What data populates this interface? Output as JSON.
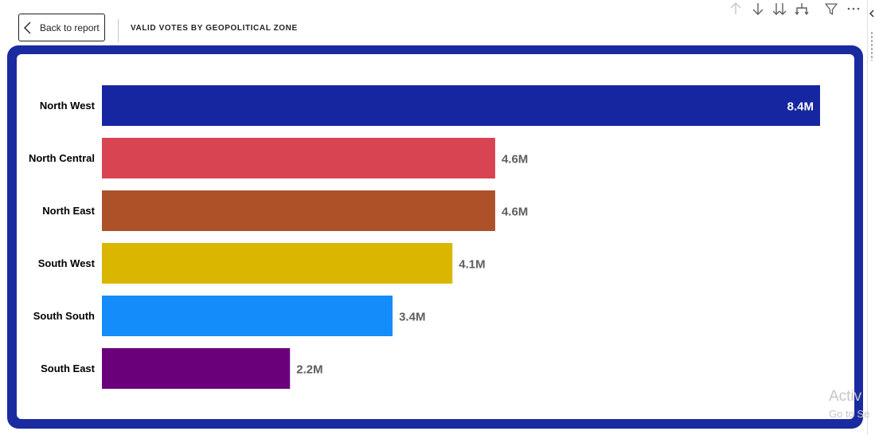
{
  "header": {
    "back_label": "Back to report",
    "title": "VALID VOTES BY GEOPOLITICAL ZONE"
  },
  "toolbar": {
    "icons": [
      "arrow-up-icon",
      "arrow-down-icon",
      "double-arrow-down-icon",
      "expand-hierarchy-icon",
      "filter-icon",
      "more-options-icon"
    ]
  },
  "watermark": {
    "line1": "Activ",
    "line2": "Go to Se"
  },
  "colors": {
    "frame": "#1a2aa0"
  },
  "chart_data": {
    "type": "bar",
    "orientation": "horizontal",
    "categories": [
      "North West",
      "North Central",
      "North East",
      "South West",
      "South South",
      "South East"
    ],
    "values": [
      8.4,
      4.6,
      4.6,
      4.1,
      3.4,
      2.2
    ],
    "value_labels": [
      "8.4M",
      "4.6M",
      "4.6M",
      "4.1M",
      "3.4M",
      "2.2M"
    ],
    "units": "M",
    "colors": [
      "#1526a0",
      "#d94452",
      "#ad5129",
      "#dab600",
      "#148dfb",
      "#6b007b"
    ],
    "xlim": [
      0,
      8.4
    ],
    "grid": false,
    "legend": "none"
  }
}
